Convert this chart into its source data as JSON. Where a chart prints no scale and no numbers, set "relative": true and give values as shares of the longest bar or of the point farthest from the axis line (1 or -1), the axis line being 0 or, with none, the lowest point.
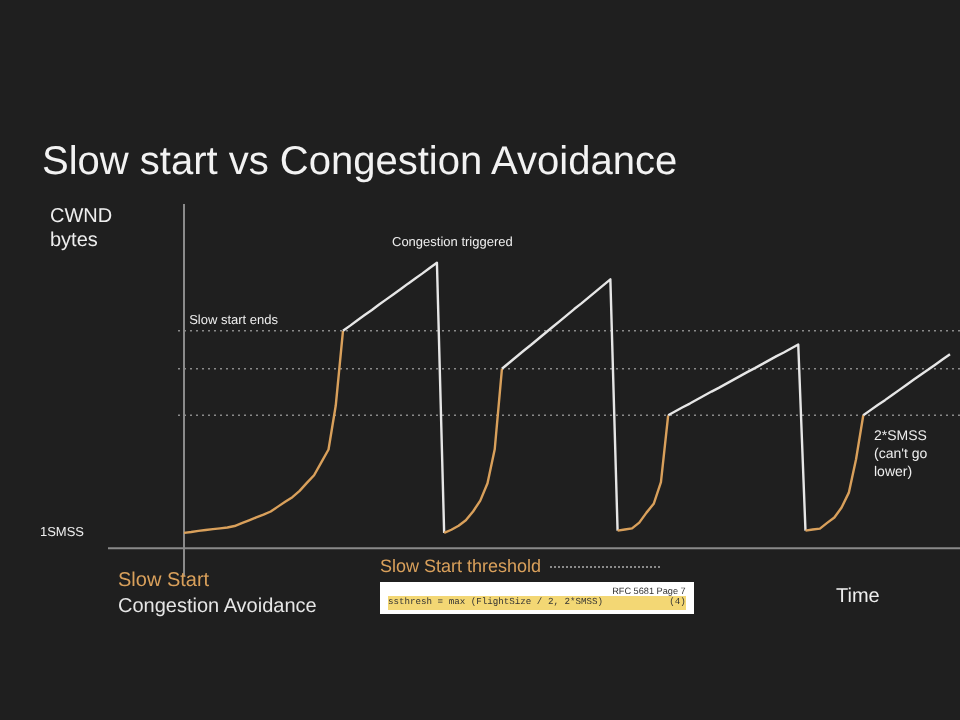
{
  "chart_data": {
    "type": "line",
    "title": "Slow start vs Congestion Avoidance",
    "xlabel": "Time",
    "ylabel": "CWND bytes",
    "relative": true,
    "line_style": "solid",
    "categories": [
      null,
      null,
      null,
      null,
      null,
      null,
      null,
      null,
      null,
      null,
      null,
      null,
      null,
      null,
      null,
      null,
      null,
      null,
      null,
      null,
      null,
      null,
      null,
      null,
      null,
      null,
      null,
      null,
      null,
      null,
      null,
      null,
      null,
      null,
      null,
      null,
      null,
      null,
      null,
      null,
      null,
      null,
      null,
      null,
      null,
      null,
      null,
      null,
      null,
      null,
      null,
      null,
      null,
      null,
      null,
      null,
      null,
      null,
      null,
      null,
      null,
      null,
      null,
      null,
      null,
      null,
      null,
      null,
      null,
      null,
      null,
      null,
      null,
      null,
      null,
      null,
      null,
      null,
      null,
      null,
      null,
      null,
      null,
      null,
      null,
      null,
      null,
      null,
      null,
      null,
      null,
      null,
      null,
      null,
      null,
      null,
      null,
      null,
      null,
      null,
      null,
      null,
      null,
      null,
      null,
      null,
      null
    ],
    "series": [
      {
        "name": "Slow Start",
        "color": "#d9a05b",
        "values": [
          0.054,
          0.057,
          0.061,
          0.064,
          0.067,
          0.07,
          0.073,
          0.078,
          0.088,
          0.098,
          0.108,
          0.118,
          0.129,
          0.146,
          0.163,
          0.179,
          0.201,
          0.229,
          0.256,
          0.301,
          0.346,
          0.5,
          0.762,
          null,
          null,
          null,
          null,
          null,
          null,
          null,
          null,
          null,
          null,
          null,
          null,
          null,
          null,
          null,
          null,
          null,
          null,
          null,
          null,
          null,
          null,
          null,
          null,
          null,
          null,
          null,
          null,
          null,
          null,
          null,
          null,
          null,
          null,
          null,
          null,
          null,
          null,
          null,
          null,
          null,
          null,
          null,
          null,
          null,
          null,
          null,
          null,
          null,
          null,
          null,
          null,
          null,
          null,
          null,
          null,
          null,
          null,
          null,
          null,
          null,
          null,
          null,
          null,
          null,
          null,
          null,
          null,
          null,
          null,
          null,
          null,
          null,
          null,
          null,
          null,
          null,
          null,
          null,
          null,
          null,
          null,
          null,
          null
        ]
      },
      {
        "name": "Congestion Avoidance",
        "color": "#e6e6e6",
        "values": [
          null,
          null,
          null,
          null,
          null,
          null,
          null,
          null,
          null,
          null,
          null,
          null,
          null,
          null,
          null,
          null,
          null,
          null,
          null,
          null,
          null,
          null,
          0.762,
          0.78,
          0.799,
          0.817,
          0.835,
          0.854,
          0.872,
          0.89,
          0.908,
          0.927,
          0.945,
          0.963,
          0.982,
          1.0,
          0.054,
          null,
          null,
          null,
          null,
          null,
          null,
          null,
          null,
          null,
          null,
          null,
          null,
          null,
          null,
          null,
          null,
          null,
          null,
          null,
          null,
          null,
          null,
          null,
          null,
          null,
          null,
          null,
          null,
          null,
          null,
          null,
          null,
          null,
          null,
          null,
          null,
          null,
          null,
          null,
          null,
          null,
          null,
          null,
          null,
          null,
          null,
          null,
          null,
          null,
          null,
          null,
          null,
          null,
          null,
          null,
          null,
          null,
          null,
          null,
          null,
          null,
          null,
          null,
          null,
          null,
          null,
          null,
          null,
          null,
          null
        ]
      },
      {
        "color": "#d9a05b",
        "values": [
          null,
          null,
          null,
          null,
          null,
          null,
          null,
          null,
          null,
          null,
          null,
          null,
          null,
          null,
          null,
          null,
          null,
          null,
          null,
          null,
          null,
          null,
          null,
          null,
          null,
          null,
          null,
          null,
          null,
          null,
          null,
          null,
          null,
          null,
          null,
          null,
          0.054,
          0.065,
          0.079,
          0.098,
          0.129,
          0.167,
          0.228,
          0.347,
          0.629,
          null,
          null,
          null,
          null,
          null,
          null,
          null,
          null,
          null,
          null,
          null,
          null,
          null,
          null,
          null,
          null,
          null,
          null,
          null,
          null,
          null,
          null,
          null,
          null,
          null,
          null,
          null,
          null,
          null,
          null,
          null,
          null,
          null,
          null,
          null,
          null,
          null,
          null,
          null,
          null,
          null,
          null,
          null,
          null,
          null,
          null,
          null,
          null,
          null,
          null,
          null,
          null,
          null,
          null,
          null,
          null,
          null,
          null,
          null,
          null,
          null,
          null
        ]
      },
      {
        "color": "#e6e6e6",
        "values": [
          null,
          null,
          null,
          null,
          null,
          null,
          null,
          null,
          null,
          null,
          null,
          null,
          null,
          null,
          null,
          null,
          null,
          null,
          null,
          null,
          null,
          null,
          null,
          null,
          null,
          null,
          null,
          null,
          null,
          null,
          null,
          null,
          null,
          null,
          null,
          null,
          null,
          null,
          null,
          null,
          null,
          null,
          null,
          null,
          0.629,
          0.65,
          0.671,
          0.692,
          0.712,
          0.733,
          0.754,
          0.775,
          0.796,
          0.817,
          0.838,
          0.858,
          0.879,
          0.9,
          0.921,
          0.942,
          0.062,
          null,
          null,
          null,
          null,
          null,
          null,
          null,
          null,
          null,
          null,
          null,
          null,
          null,
          null,
          null,
          null,
          null,
          null,
          null,
          null,
          null,
          null,
          null,
          null,
          null,
          null,
          null,
          null,
          null,
          null,
          null,
          null,
          null,
          null,
          null,
          null,
          null,
          null,
          null,
          null,
          null,
          null,
          null,
          null,
          null,
          null
        ]
      },
      {
        "color": "#d9a05b",
        "values": [
          null,
          null,
          null,
          null,
          null,
          null,
          null,
          null,
          null,
          null,
          null,
          null,
          null,
          null,
          null,
          null,
          null,
          null,
          null,
          null,
          null,
          null,
          null,
          null,
          null,
          null,
          null,
          null,
          null,
          null,
          null,
          null,
          null,
          null,
          null,
          null,
          null,
          null,
          null,
          null,
          null,
          null,
          null,
          null,
          null,
          null,
          null,
          null,
          null,
          null,
          null,
          null,
          null,
          null,
          null,
          null,
          null,
          null,
          null,
          null,
          0.062,
          0.066,
          0.07,
          0.09,
          0.125,
          0.156,
          0.232,
          0.466,
          null,
          null,
          null,
          null,
          null,
          null,
          null,
          null,
          null,
          null,
          null,
          null,
          null,
          null,
          null,
          null,
          null,
          null,
          null,
          null,
          null,
          null,
          null,
          null,
          null,
          null,
          null,
          null,
          null,
          null,
          null,
          null,
          null,
          null,
          null,
          null,
          null,
          null,
          null
        ]
      },
      {
        "color": "#e6e6e6",
        "values": [
          null,
          null,
          null,
          null,
          null,
          null,
          null,
          null,
          null,
          null,
          null,
          null,
          null,
          null,
          null,
          null,
          null,
          null,
          null,
          null,
          null,
          null,
          null,
          null,
          null,
          null,
          null,
          null,
          null,
          null,
          null,
          null,
          null,
          null,
          null,
          null,
          null,
          null,
          null,
          null,
          null,
          null,
          null,
          null,
          null,
          null,
          null,
          null,
          null,
          null,
          null,
          null,
          null,
          null,
          null,
          null,
          null,
          null,
          null,
          null,
          null,
          null,
          null,
          null,
          null,
          null,
          null,
          0.466,
          0.48,
          0.494,
          0.507,
          0.521,
          0.535,
          0.549,
          0.562,
          0.576,
          0.59,
          0.604,
          0.618,
          0.631,
          0.645,
          0.659,
          0.673,
          0.686,
          0.7,
          0.714,
          0.062,
          null,
          null,
          null,
          null,
          null,
          null,
          null,
          null,
          null,
          null,
          null,
          null,
          null,
          null,
          null,
          null,
          null,
          null,
          null,
          null
        ]
      },
      {
        "color": "#d9a05b",
        "values": [
          null,
          null,
          null,
          null,
          null,
          null,
          null,
          null,
          null,
          null,
          null,
          null,
          null,
          null,
          null,
          null,
          null,
          null,
          null,
          null,
          null,
          null,
          null,
          null,
          null,
          null,
          null,
          null,
          null,
          null,
          null,
          null,
          null,
          null,
          null,
          null,
          null,
          null,
          null,
          null,
          null,
          null,
          null,
          null,
          null,
          null,
          null,
          null,
          null,
          null,
          null,
          null,
          null,
          null,
          null,
          null,
          null,
          null,
          null,
          null,
          null,
          null,
          null,
          null,
          null,
          null,
          null,
          null,
          null,
          null,
          null,
          null,
          null,
          null,
          null,
          null,
          null,
          null,
          null,
          null,
          null,
          null,
          null,
          null,
          null,
          null,
          0.062,
          0.066,
          0.069,
          0.089,
          0.108,
          0.143,
          0.195,
          0.312,
          0.466,
          null,
          null,
          null,
          null,
          null,
          null,
          null,
          null,
          null,
          null,
          null,
          null
        ]
      },
      {
        "color": "#e6e6e6",
        "values": [
          null,
          null,
          null,
          null,
          null,
          null,
          null,
          null,
          null,
          null,
          null,
          null,
          null,
          null,
          null,
          null,
          null,
          null,
          null,
          null,
          null,
          null,
          null,
          null,
          null,
          null,
          null,
          null,
          null,
          null,
          null,
          null,
          null,
          null,
          null,
          null,
          null,
          null,
          null,
          null,
          null,
          null,
          null,
          null,
          null,
          null,
          null,
          null,
          null,
          null,
          null,
          null,
          null,
          null,
          null,
          null,
          null,
          null,
          null,
          null,
          null,
          null,
          null,
          null,
          null,
          null,
          null,
          null,
          null,
          null,
          null,
          null,
          null,
          null,
          null,
          null,
          null,
          null,
          null,
          null,
          null,
          null,
          null,
          null,
          null,
          null,
          null,
          null,
          null,
          null,
          null,
          null,
          null,
          null,
          0.466,
          0.484,
          0.502,
          0.519,
          0.537,
          0.555,
          0.573,
          0.591,
          0.609,
          0.626,
          0.644,
          0.662,
          0.68
        ]
      }
    ],
    "ref_lines": [
      {
        "axis": "y",
        "value": 0.762,
        "color": "#8a8a8a",
        "line_style": "dotted"
      },
      {
        "axis": "y",
        "value": 0.629,
        "color": "#8a8a8a",
        "line_style": "dotted"
      },
      {
        "axis": "y",
        "value": 0.466,
        "color": "#8a8a8a",
        "line_style": "dotted"
      }
    ],
    "annotations": [
      "Slow start ends",
      "Congestion triggered",
      "1SMSS",
      "2*SMSS (can't go lower)",
      "Slow Start threshold",
      "ssthresh = max (FlightSize / 2, 2*SMSS)            (4)",
      "RFC 5681 Page 7"
    ]
  }
}
